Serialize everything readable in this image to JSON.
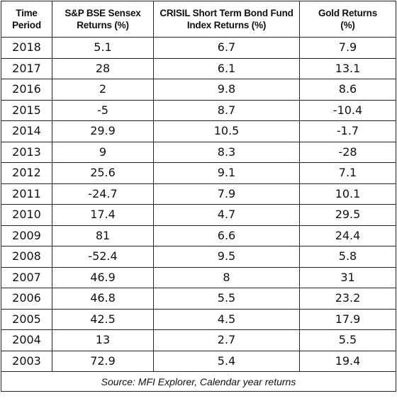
{
  "table": {
    "headers": [
      [
        "Time",
        "Period"
      ],
      [
        "S&P BSE Sensex",
        "Returns (%)"
      ],
      [
        "CRISIL Short Term Bond Fund",
        "Index Returns (%)"
      ],
      [
        "Gold Returns",
        "(%)"
      ]
    ],
    "rows": [
      [
        "2018",
        "5.1",
        "6.7",
        "7.9"
      ],
      [
        "2017",
        "28",
        "6.1",
        "13.1"
      ],
      [
        "2016",
        "2",
        "9.8",
        "8.6"
      ],
      [
        "2015",
        "-5",
        "8.7",
        "-10.4"
      ],
      [
        "2014",
        "29.9",
        "10.5",
        "-1.7"
      ],
      [
        "2013",
        "9",
        "8.3",
        "-28"
      ],
      [
        "2012",
        "25.6",
        "9.1",
        "7.1"
      ],
      [
        "2011",
        "-24.7",
        "7.9",
        "10.1"
      ],
      [
        "2010",
        "17.4",
        "4.7",
        "29.5"
      ],
      [
        "2009",
        "81",
        "6.6",
        "24.4"
      ],
      [
        "2008",
        "-52.4",
        "9.5",
        "5.8"
      ],
      [
        "2007",
        "46.9",
        "8",
        "31"
      ],
      [
        "2006",
        "46.8",
        "5.5",
        "23.2"
      ],
      [
        "2005",
        "42.5",
        "4.5",
        "17.9"
      ],
      [
        "2004",
        "13",
        "2.7",
        "5.5"
      ],
      [
        "2003",
        "72.9",
        "5.4",
        "19.4"
      ]
    ],
    "source": "Source: MFI Explorer, Calendar year returns"
  }
}
